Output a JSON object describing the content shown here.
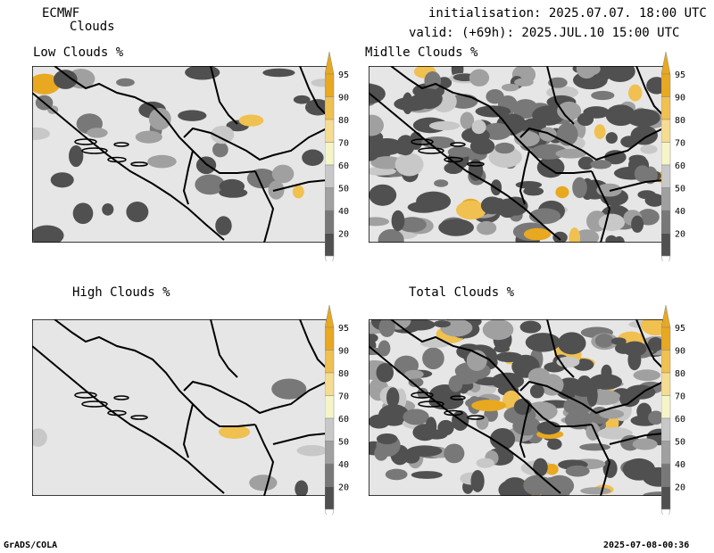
{
  "header": {
    "model": "ECMWF",
    "product": "Clouds",
    "initialisation": "initialisation: 2025.07.07. 18:00 UTC",
    "valid": "valid: (+69h): 2025.JUL.10 15:00 UTC"
  },
  "panels": {
    "low": {
      "title": "Low Clouds %"
    },
    "middle": {
      "title": "Midlle Clouds %"
    },
    "high": {
      "title": "High Clouds %"
    },
    "total": {
      "title": "Total Clouds %"
    }
  },
  "colorbar": {
    "levels": [
      "95",
      "90",
      "80",
      "70",
      "60",
      "50",
      "40",
      "20"
    ],
    "colors": [
      "#e8a820",
      "#f0c050",
      "#f5dc90",
      "#f5f5c8",
      "#c8c8c8",
      "#a0a0a0",
      "#787878",
      "#505050"
    ],
    "background": "#e6e6e6"
  },
  "footer": {
    "left": "GrADS/COLA",
    "right": "2025-07-08-00:36"
  }
}
